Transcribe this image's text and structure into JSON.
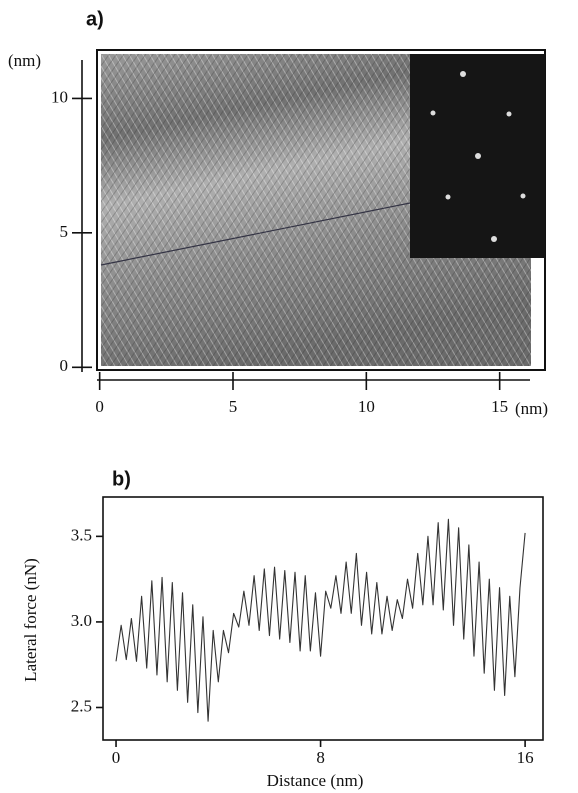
{
  "chart_data": [
    {
      "type": "image",
      "label": "a)",
      "xlabel": "(nm)",
      "ylabel": "(nm)",
      "xlim": [
        -0.1,
        16.7
      ],
      "ylim": [
        -0.1,
        11.8
      ],
      "xticks": [
        0,
        5,
        10,
        15
      ],
      "yticks": [
        0,
        5,
        10
      ]
    },
    {
      "type": "line",
      "label": "b)",
      "xlabel": "Distance (nm)",
      "ylabel": "Lateral force (nN)",
      "color": "#333333",
      "xlim": [
        -0.51,
        16.7
      ],
      "ylim": [
        2.31,
        3.73
      ],
      "xticks": [
        0,
        8,
        16
      ],
      "yticks": [
        2.5,
        {
          "value": 3,
          "label": "3.0"
        },
        3.5
      ],
      "x": [
        0,
        0.2,
        0.4,
        0.6,
        0.8,
        1,
        1.2,
        1.4,
        1.6,
        1.8,
        2,
        2.2,
        2.4,
        2.6,
        2.8,
        3,
        3.2,
        3.4,
        3.6,
        3.8,
        4,
        4.2,
        4.4,
        4.6,
        4.8,
        5,
        5.2,
        5.4,
        5.6,
        5.8,
        6,
        6.2,
        6.4,
        6.6,
        6.8,
        7,
        7.2,
        7.4,
        7.6,
        7.8,
        8,
        8.2,
        8.4,
        8.6,
        8.8,
        9,
        9.2,
        9.4,
        9.6,
        9.8,
        10,
        10.2,
        10.4,
        10.6,
        10.8,
        11,
        11.2,
        11.4,
        11.6,
        11.8,
        12,
        12.2,
        12.4,
        12.6,
        12.8,
        13,
        13.2,
        13.4,
        13.6,
        13.8,
        14,
        14.2,
        14.4,
        14.6,
        14.8,
        15,
        15.2,
        15.4,
        15.6,
        15.8,
        16
      ],
      "values": [
        2.77,
        2.98,
        2.78,
        3.02,
        2.77,
        3.15,
        2.73,
        3.24,
        2.69,
        3.26,
        2.65,
        3.23,
        2.6,
        3.17,
        2.53,
        3.1,
        2.47,
        3.03,
        2.42,
        2.95,
        2.65,
        2.95,
        2.82,
        3.05,
        2.97,
        3.18,
        2.98,
        3.27,
        2.95,
        3.31,
        2.92,
        3.32,
        2.9,
        3.3,
        2.88,
        3.29,
        2.83,
        3.27,
        2.83,
        3.17,
        2.8,
        3.18,
        3.08,
        3.27,
        3.05,
        3.35,
        3.05,
        3.4,
        2.98,
        3.29,
        2.93,
        3.23,
        2.93,
        3.15,
        2.95,
        3.13,
        3.02,
        3.25,
        3.08,
        3.4,
        3.1,
        3.5,
        3.1,
        3.58,
        3.07,
        3.6,
        2.98,
        3.55,
        2.9,
        3.45,
        2.8,
        3.35,
        2.7,
        3.25,
        2.6,
        3.2,
        2.57,
        3.15,
        2.68,
        3.2,
        3.52
      ]
    }
  ]
}
